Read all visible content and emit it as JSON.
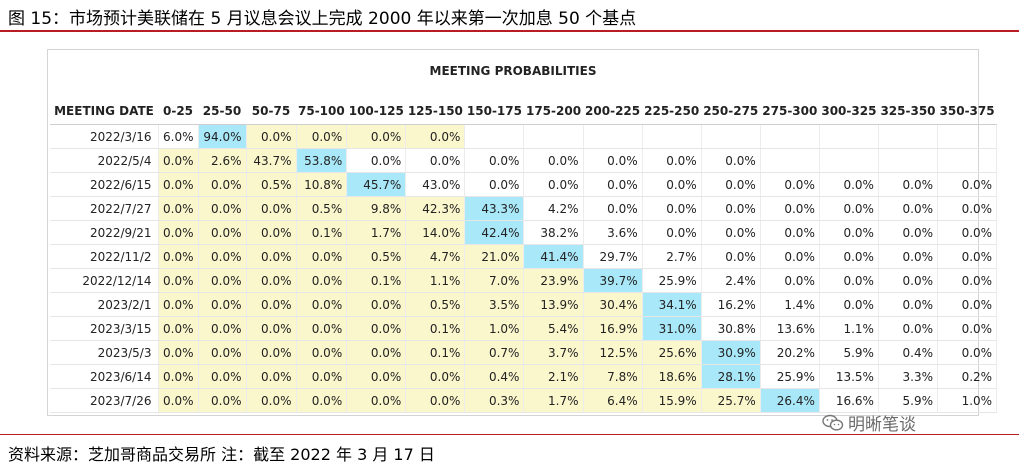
{
  "figure": {
    "title": "图 15：市场预计美联储在 5 月议息会议上完成 2000 年以来第一次加息 50 个基点",
    "source": "资料来源：芝加哥商品交易所   注：截至 2022 年 3 月 17 日",
    "watermark": "明晰笔谈"
  },
  "table": {
    "title": "MEETING PROBABILITIES",
    "header_first": "MEETING DATE",
    "columns": [
      "0-25",
      "25-50",
      "50-75",
      "75-100",
      "100-125",
      "125-150",
      "150-175",
      "175-200",
      "200-225",
      "225-250",
      "250-275",
      "275-300",
      "300-325",
      "325-350",
      "350-375"
    ],
    "rows": [
      {
        "date": "2022/3/16",
        "cells": [
          "6.0%",
          "94.0%",
          "0.0%",
          "0.0%",
          "0.0%",
          "0.0%",
          "",
          "",
          "",
          "",
          "",
          "",
          "",
          "",
          ""
        ],
        "hi": [
          0,
          1,
          1,
          1,
          1,
          1,
          0,
          0,
          0,
          0,
          0,
          0,
          0,
          0,
          0
        ],
        "max": 1
      },
      {
        "date": "2022/5/4",
        "cells": [
          "0.0%",
          "2.6%",
          "43.7%",
          "53.8%",
          "0.0%",
          "0.0%",
          "0.0%",
          "0.0%",
          "0.0%",
          "0.0%",
          "0.0%",
          "",
          "",
          "",
          ""
        ],
        "hi": [
          1,
          1,
          1,
          0,
          0,
          0,
          0,
          0,
          0,
          0,
          0,
          0,
          0,
          0,
          0
        ],
        "max": 3
      },
      {
        "date": "2022/6/15",
        "cells": [
          "0.0%",
          "0.0%",
          "0.5%",
          "10.8%",
          "45.7%",
          "43.0%",
          "0.0%",
          "0.0%",
          "0.0%",
          "0.0%",
          "0.0%",
          "0.0%",
          "0.0%",
          "0.0%",
          "0.0%"
        ],
        "hi": [
          1,
          1,
          1,
          1,
          0,
          0,
          0,
          0,
          0,
          0,
          0,
          0,
          0,
          0,
          0
        ],
        "max": 4
      },
      {
        "date": "2022/7/27",
        "cells": [
          "0.0%",
          "0.0%",
          "0.0%",
          "0.5%",
          "9.8%",
          "42.3%",
          "43.3%",
          "4.2%",
          "0.0%",
          "0.0%",
          "0.0%",
          "0.0%",
          "0.0%",
          "0.0%",
          "0.0%"
        ],
        "hi": [
          1,
          1,
          1,
          1,
          1,
          1,
          0,
          0,
          0,
          0,
          0,
          0,
          0,
          0,
          0
        ],
        "max": 6
      },
      {
        "date": "2022/9/21",
        "cells": [
          "0.0%",
          "0.0%",
          "0.0%",
          "0.1%",
          "1.7%",
          "14.0%",
          "42.4%",
          "38.2%",
          "3.6%",
          "0.0%",
          "0.0%",
          "0.0%",
          "0.0%",
          "0.0%",
          "0.0%"
        ],
        "hi": [
          1,
          1,
          1,
          1,
          1,
          1,
          0,
          0,
          0,
          0,
          0,
          0,
          0,
          0,
          0
        ],
        "max": 6
      },
      {
        "date": "2022/11/2",
        "cells": [
          "0.0%",
          "0.0%",
          "0.0%",
          "0.0%",
          "0.5%",
          "4.7%",
          "21.0%",
          "41.4%",
          "29.7%",
          "2.7%",
          "0.0%",
          "0.0%",
          "0.0%",
          "0.0%",
          "0.0%"
        ],
        "hi": [
          1,
          1,
          1,
          1,
          1,
          1,
          1,
          0,
          0,
          0,
          0,
          0,
          0,
          0,
          0
        ],
        "max": 7
      },
      {
        "date": "2022/12/14",
        "cells": [
          "0.0%",
          "0.0%",
          "0.0%",
          "0.0%",
          "0.1%",
          "1.1%",
          "7.0%",
          "23.9%",
          "39.7%",
          "25.9%",
          "2.4%",
          "0.0%",
          "0.0%",
          "0.0%",
          "0.0%"
        ],
        "hi": [
          1,
          1,
          1,
          1,
          1,
          1,
          1,
          1,
          0,
          0,
          0,
          0,
          0,
          0,
          0
        ],
        "max": 8
      },
      {
        "date": "2023/2/1",
        "cells": [
          "0.0%",
          "0.0%",
          "0.0%",
          "0.0%",
          "0.0%",
          "0.5%",
          "3.5%",
          "13.9%",
          "30.4%",
          "34.1%",
          "16.2%",
          "1.4%",
          "0.0%",
          "0.0%",
          "0.0%"
        ],
        "hi": [
          1,
          1,
          1,
          1,
          1,
          1,
          1,
          1,
          1,
          0,
          0,
          0,
          0,
          0,
          0
        ],
        "max": 9
      },
      {
        "date": "2023/3/15",
        "cells": [
          "0.0%",
          "0.0%",
          "0.0%",
          "0.0%",
          "0.0%",
          "0.1%",
          "1.0%",
          "5.4%",
          "16.9%",
          "31.0%",
          "30.8%",
          "13.6%",
          "1.1%",
          "0.0%",
          "0.0%"
        ],
        "hi": [
          1,
          1,
          1,
          1,
          1,
          1,
          1,
          1,
          1,
          0,
          0,
          0,
          0,
          0,
          0
        ],
        "max": 9
      },
      {
        "date": "2023/5/3",
        "cells": [
          "0.0%",
          "0.0%",
          "0.0%",
          "0.0%",
          "0.0%",
          "0.1%",
          "0.7%",
          "3.7%",
          "12.5%",
          "25.6%",
          "30.9%",
          "20.2%",
          "5.9%",
          "0.4%",
          "0.0%"
        ],
        "hi": [
          1,
          1,
          1,
          1,
          1,
          1,
          1,
          1,
          1,
          1,
          0,
          0,
          0,
          0,
          0
        ],
        "max": 10
      },
      {
        "date": "2023/6/14",
        "cells": [
          "0.0%",
          "0.0%",
          "0.0%",
          "0.0%",
          "0.0%",
          "0.0%",
          "0.4%",
          "2.1%",
          "7.8%",
          "18.6%",
          "28.1%",
          "25.9%",
          "13.5%",
          "3.3%",
          "0.2%"
        ],
        "hi": [
          1,
          1,
          1,
          1,
          1,
          1,
          1,
          1,
          1,
          1,
          0,
          0,
          0,
          0,
          0
        ],
        "max": 10
      },
      {
        "date": "2023/7/26",
        "cells": [
          "0.0%",
          "0.0%",
          "0.0%",
          "0.0%",
          "0.0%",
          "0.0%",
          "0.3%",
          "1.7%",
          "6.4%",
          "15.9%",
          "25.7%",
          "26.4%",
          "16.6%",
          "5.9%",
          "1.0%"
        ],
        "hi": [
          1,
          1,
          1,
          1,
          1,
          1,
          1,
          1,
          1,
          1,
          1,
          0,
          0,
          0,
          0
        ],
        "max": 11
      }
    ]
  }
}
